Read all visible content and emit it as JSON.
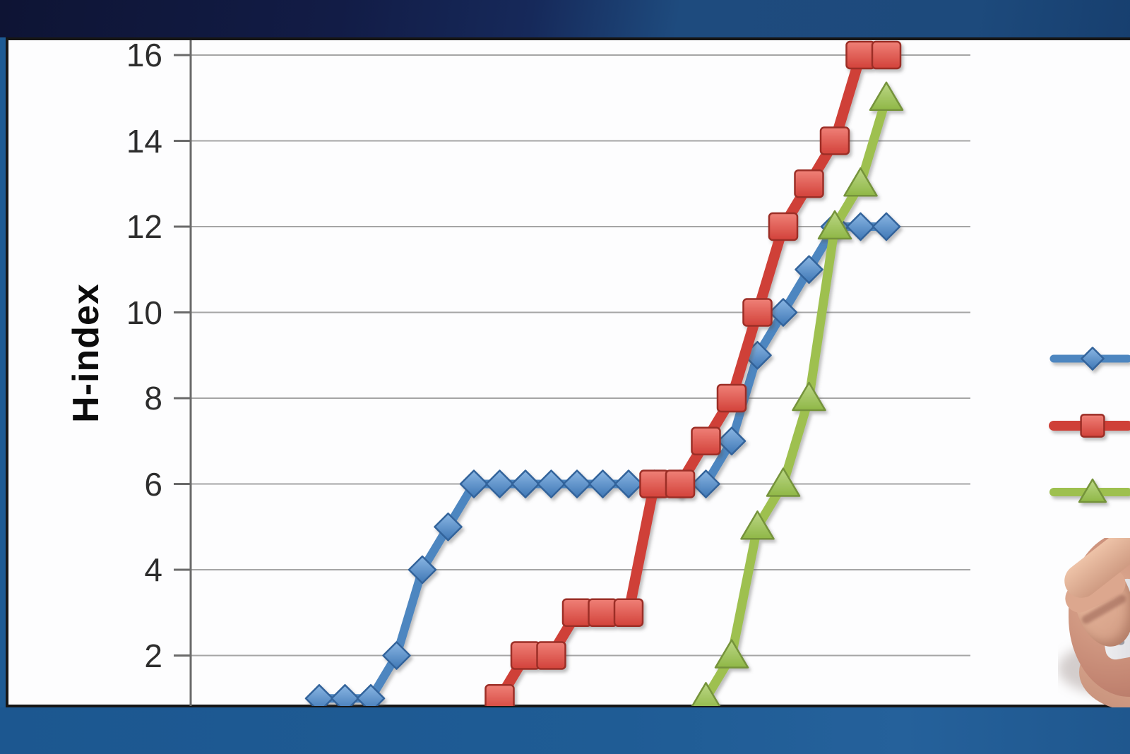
{
  "slide": {
    "top_band_colors": [
      "#0e1434",
      "#1e4b7e"
    ],
    "bottom_band_color": "#1f5c95",
    "chart_background": "#fdfdfe",
    "chart_border_color": "#161616"
  },
  "chart_data": {
    "type": "line",
    "title": "",
    "xlabel": "",
    "ylabel": "H-index",
    "x_tick_labels_visible": false,
    "yticks": [
      2,
      4,
      6,
      8,
      10,
      12,
      14,
      16
    ],
    "ylim_visible": [
      0.8,
      16.4
    ],
    "grid": true,
    "grid_color": "#a5a5a5",
    "axis_color": "#6a6a6a",
    "tick_label_color": "#2d2d2d",
    "legend": {
      "position": "right",
      "labels_visible": false,
      "labels_cropped_offscreen": true
    },
    "n_points": 23,
    "series": [
      {
        "name": "series-blue-diamond",
        "marker": "diamond",
        "line_color": "#4d86c0",
        "fill_light": "#8ab6e3",
        "fill_dark": "#3f77b5",
        "edge_color": "#33639b",
        "values": [
          1,
          1,
          1,
          2,
          4,
          5,
          6,
          6,
          6,
          6,
          6,
          6,
          6,
          6,
          6,
          6,
          7,
          9,
          10,
          11,
          12,
          12,
          12
        ]
      },
      {
        "name": "series-red-square",
        "marker": "square",
        "line_color": "#cf4138",
        "fill_light": "#ef8077",
        "fill_dark": "#d2423a",
        "edge_color": "#9c2f28",
        "values": [
          null,
          null,
          null,
          null,
          null,
          null,
          null,
          1,
          2,
          2,
          3,
          3,
          3,
          6,
          6,
          7,
          8,
          10,
          12,
          13,
          14,
          16,
          16
        ]
      },
      {
        "name": "series-green-triangle",
        "marker": "triangle",
        "line_color": "#9ec050",
        "fill_light": "#bcd786",
        "fill_dark": "#8fb747",
        "edge_color": "#74933a",
        "values": [
          null,
          null,
          null,
          null,
          null,
          null,
          null,
          null,
          null,
          null,
          null,
          null,
          null,
          null,
          null,
          1,
          2,
          5,
          6,
          8,
          12,
          13,
          15
        ]
      }
    ]
  }
}
